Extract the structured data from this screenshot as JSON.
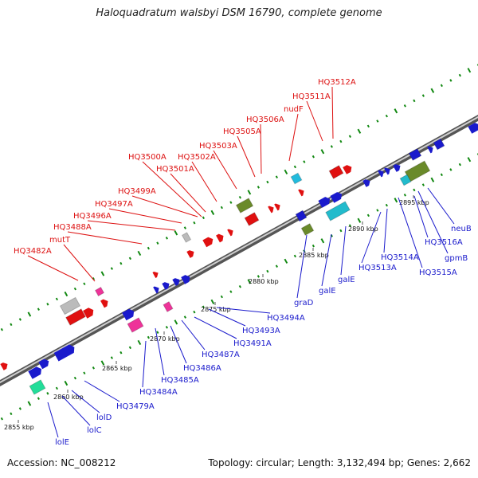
{
  "title": "Haloquadratum walsbyi DSM 16790, complete genome",
  "footer": {
    "accession": "Accession: NC_008212",
    "summary": "Topology: circular; Length: 3,132,494 bp; Genes: 2,662"
  },
  "colors": {
    "forward_label": "#dd1111",
    "reverse_label": "#1a1acc",
    "backbone": "#888888",
    "green_dots": "#118811"
  },
  "ticks": [
    {
      "label": "2855 kbp"
    },
    {
      "label": "2860 kbp"
    },
    {
      "label": "2865 kbp"
    },
    {
      "label": "2870 kbp"
    },
    {
      "label": "2875 kbp"
    },
    {
      "label": "2880 kbp"
    },
    {
      "label": "2885 kbp"
    },
    {
      "label": "2890 kbp"
    },
    {
      "label": "2895 kbp"
    }
  ],
  "forward_labels": [
    {
      "name": "HQ3482A"
    },
    {
      "name": "mutT"
    },
    {
      "name": "HQ3488A"
    },
    {
      "name": "HQ3496A"
    },
    {
      "name": "HQ3497A"
    },
    {
      "name": "HQ3499A"
    },
    {
      "name": "HQ3501A"
    },
    {
      "name": "HQ3500A"
    },
    {
      "name": "HQ3502A"
    },
    {
      "name": "HQ3503A"
    },
    {
      "name": "HQ3505A"
    },
    {
      "name": "HQ3506A"
    },
    {
      "name": "nudF"
    },
    {
      "name": "HQ3511A"
    },
    {
      "name": "HQ3512A"
    }
  ],
  "reverse_labels": [
    {
      "name": "lolE"
    },
    {
      "name": "lolC"
    },
    {
      "name": "lolD"
    },
    {
      "name": "HQ3479A"
    },
    {
      "name": "HQ3484A"
    },
    {
      "name": "HQ3485A"
    },
    {
      "name": "HQ3486A"
    },
    {
      "name": "HQ3487A"
    },
    {
      "name": "HQ3491A"
    },
    {
      "name": "HQ3493A"
    },
    {
      "name": "HQ3494A"
    },
    {
      "name": "graD"
    },
    {
      "name": "galE"
    },
    {
      "name": "galE"
    },
    {
      "name": "HQ3513A"
    },
    {
      "name": "HQ3514A"
    },
    {
      "name": "HQ3515A"
    },
    {
      "name": "gpmB"
    },
    {
      "name": "HQ3516A"
    },
    {
      "name": "neuB"
    }
  ]
}
